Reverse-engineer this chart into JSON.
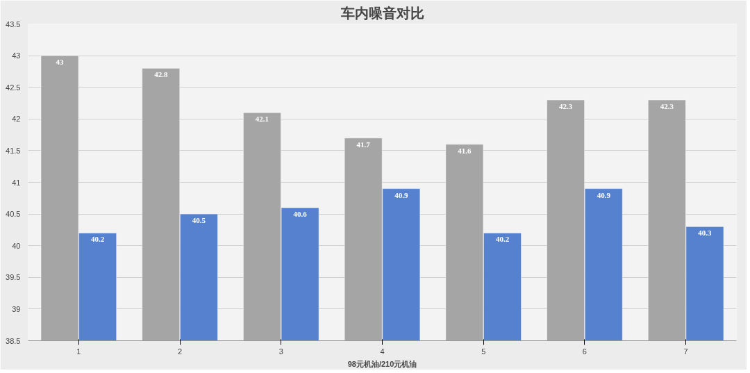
{
  "chart_data": {
    "type": "bar",
    "title": "车内噪音对比",
    "xlabel": "98元机油/210元机油",
    "categories": [
      "1",
      "2",
      "3",
      "4",
      "5",
      "6",
      "7"
    ],
    "series": [
      {
        "color": "#a5a5a5",
        "values": [
          43,
          42.8,
          42.1,
          41.7,
          41.6,
          42.3,
          42.3
        ]
      },
      {
        "color": "#5681cf",
        "values": [
          40.2,
          40.5,
          40.6,
          40.9,
          40.2,
          40.9,
          40.3
        ]
      }
    ],
    "ylim": [
      38.5,
      43.5
    ],
    "yticks": [
      38.5,
      39,
      39.5,
      40,
      40.5,
      41,
      41.5,
      42,
      42.5,
      43,
      43.5
    ],
    "grid": "y",
    "data_labels": true
  }
}
